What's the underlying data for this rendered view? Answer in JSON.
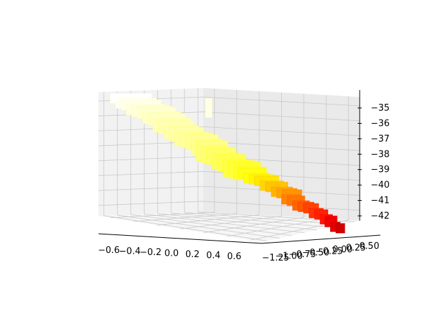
{
  "chart_data": {
    "type": "surface3d",
    "colormap": "hot",
    "grid": true,
    "x_axis": {
      "ticks": [
        -0.6,
        -0.4,
        -0.2,
        0.0,
        0.2,
        0.4,
        0.6
      ],
      "tick_labels": [
        "−0.6",
        "−0.4",
        "−0.2",
        "0.0",
        "0.2",
        "0.4",
        "0.6"
      ],
      "range": [
        -0.7,
        0.7
      ]
    },
    "y_axis": {
      "ticks": [
        -1.25,
        -1.0,
        -0.75,
        -0.5,
        -0.25,
        0.0,
        0.25,
        0.5
      ],
      "tick_labels": [
        "−1.25",
        "−1.00",
        "−0.75",
        "−0.50",
        "−0.25",
        "0.00",
        "0.25",
        "0.50"
      ],
      "range": [
        -1.35,
        0.6
      ]
    },
    "z_axis": {
      "ticks": [
        -42,
        -41,
        -40,
        -39,
        -38,
        -37,
        -36,
        -35
      ],
      "tick_labels": [
        "−42",
        "−41",
        "−40",
        "−39",
        "−38",
        "−37",
        "−36",
        "−35"
      ],
      "range": [
        -42.7,
        -34.4
      ]
    },
    "surface_profile": [
      {
        "t": 0.0,
        "z": -34.6
      },
      {
        "t": 0.1,
        "z": -35.1
      },
      {
        "t": 0.2,
        "z": -35.4
      },
      {
        "t": 0.3,
        "z": -35.7
      },
      {
        "t": 0.4,
        "z": -36.1
      },
      {
        "t": 0.5,
        "z": -36.7
      },
      {
        "t": 0.6,
        "z": -37.3
      },
      {
        "t": 0.7,
        "z": -38.6
      },
      {
        "t": 0.8,
        "z": -39.8
      },
      {
        "t": 0.9,
        "z": -41.1
      },
      {
        "t": 1.0,
        "z": -42.3
      }
    ],
    "colors": {
      "axis_line": "#000000",
      "grid": "#c8c8c8",
      "pane_back": "#eaeaea",
      "pane_left": "#f2f2f2",
      "pane_floor": "#f6f6f6"
    }
  }
}
